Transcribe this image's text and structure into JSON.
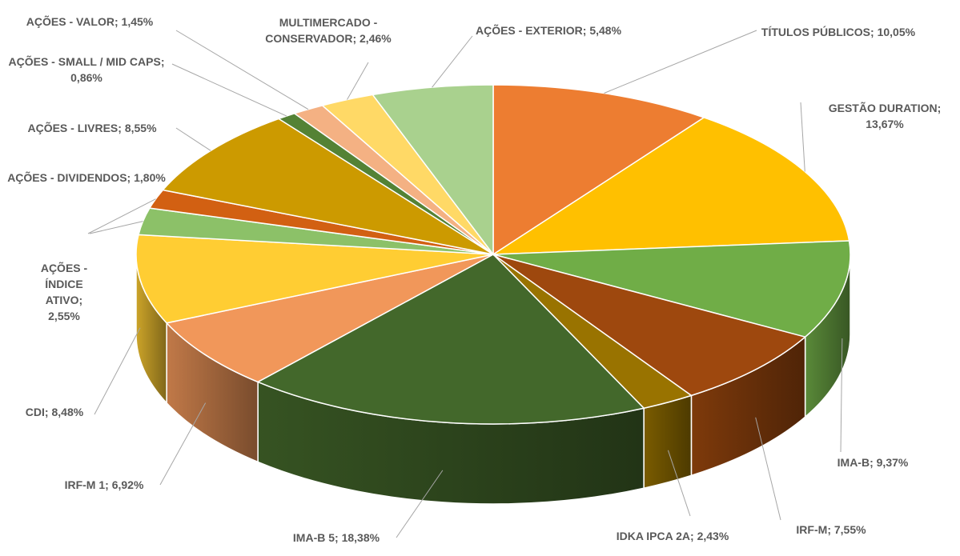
{
  "chart_data": {
    "type": "pie3d",
    "separator": "; ",
    "categories": [
      "TÍTULOS PÚBLICOS",
      "GESTÃO DURATION",
      "IMA-B",
      "IRF-M",
      "IDKA IPCA 2A",
      "IMA-B 5",
      "IRF-M 1",
      "CDI",
      "AÇÕES - ÍNDICE ATIVO",
      "AÇÕES - DIVIDENDOS",
      "AÇÕES - LIVRES",
      "AÇÕES - SMALL / MID CAPS",
      "AÇÕES - VALOR",
      "MULTIMERCADO - CONSERVADOR",
      "AÇÕES - EXTERIOR"
    ],
    "values": [
      10.05,
      13.67,
      9.37,
      7.55,
      2.43,
      18.38,
      6.92,
      8.48,
      2.55,
      1.8,
      8.55,
      0.86,
      1.45,
      2.46,
      5.48
    ],
    "value_labels": [
      "10,05%",
      "13,67%",
      "9,37%",
      "7,55%",
      "2,43%",
      "18,38%",
      "6,92%",
      "8,48%",
      "2,55%",
      "1,80%",
      "8,55%",
      "0,86%",
      "1,45%",
      "2,46%",
      "5,48%"
    ],
    "colors": [
      "#ED7D31",
      "#FFC000",
      "#70AD47",
      "#9E480E",
      "#997300",
      "#43682B",
      "#F1975A",
      "#FFCD33",
      "#8CC168",
      "#D26012",
      "#CC9A00",
      "#548235",
      "#F4B183",
      "#FFD966",
      "#A9D18E"
    ]
  }
}
